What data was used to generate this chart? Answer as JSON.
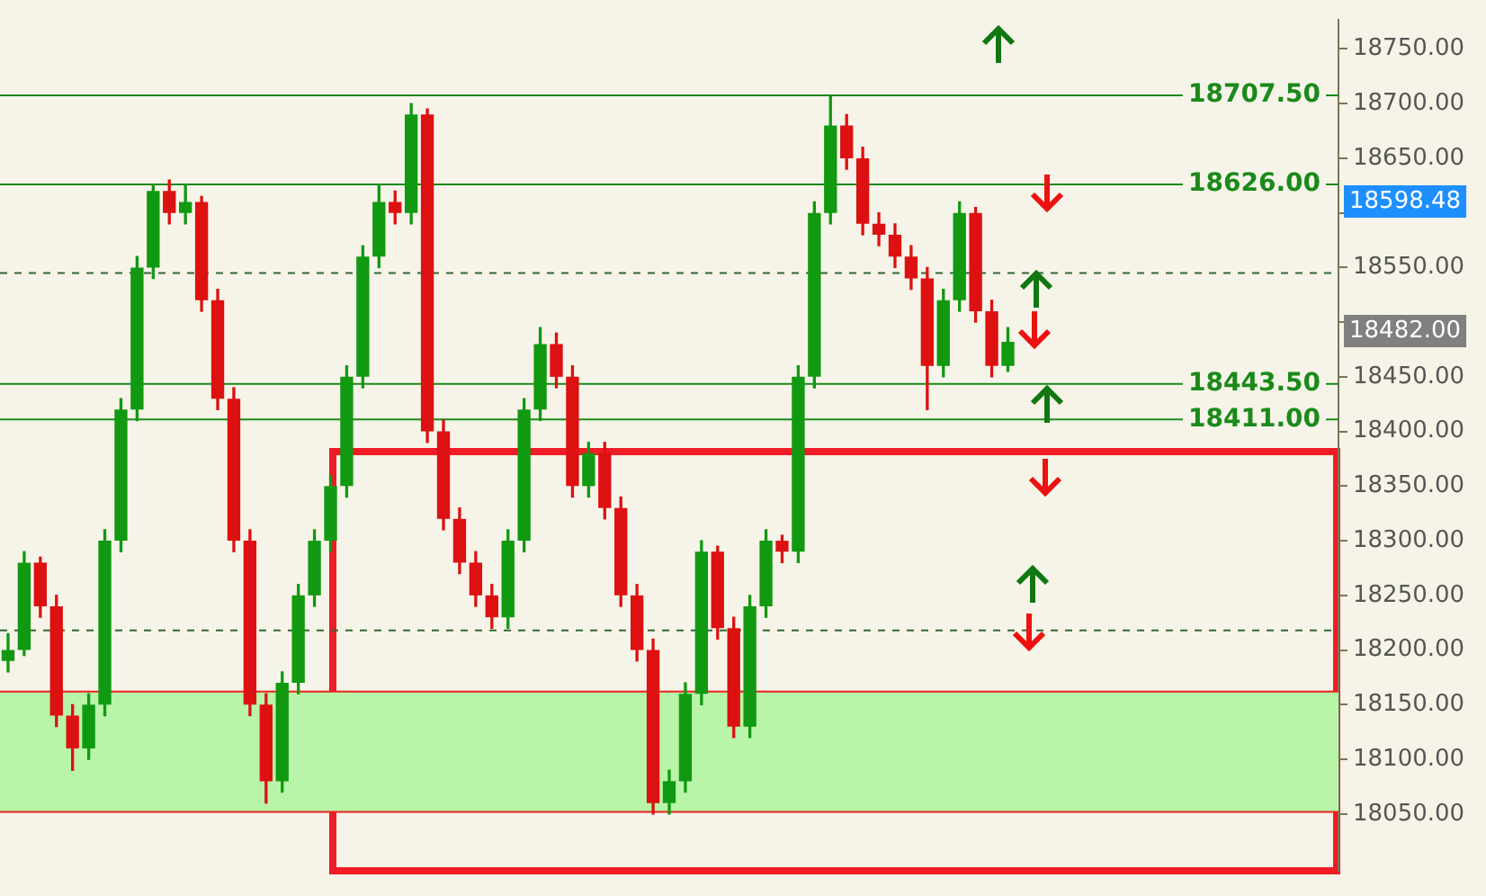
{
  "chart_data": {
    "type": "candlestick",
    "categories": [
      null,
      null,
      null,
      null,
      null,
      null,
      null,
      null,
      null,
      null,
      null,
      null,
      null,
      null,
      null,
      null,
      null,
      null,
      null,
      null,
      null,
      null,
      null,
      null,
      null,
      null,
      null,
      null,
      null,
      null,
      null,
      null,
      null,
      null,
      null,
      null,
      null,
      null,
      null,
      null,
      null,
      null,
      null,
      null,
      null,
      null,
      null,
      null,
      null,
      null,
      null,
      null,
      null,
      null,
      null,
      null,
      null,
      null,
      null,
      null,
      null,
      null,
      null,
      null,
      null,
      null,
      null,
      null,
      null,
      null,
      null,
      null,
      null,
      null,
      null,
      null,
      null,
      null,
      null,
      null,
      null,
      null,
      null
    ],
    "ohlc": [
      [
        18190,
        18215,
        18180,
        18200
      ],
      [
        18200,
        18290,
        18195,
        18280
      ],
      [
        18280,
        18285,
        18230,
        18240
      ],
      [
        18240,
        18250,
        18130,
        18140
      ],
      [
        18140,
        18150,
        18090,
        18110
      ],
      [
        18110,
        18160,
        18100,
        18150
      ],
      [
        18150,
        18310,
        18140,
        18300
      ],
      [
        18300,
        18430,
        18290,
        18420
      ],
      [
        18420,
        18560,
        18410,
        18550
      ],
      [
        18550,
        18625,
        18540,
        18620
      ],
      [
        18620,
        18630,
        18590,
        18600
      ],
      [
        18600,
        18625,
        18590,
        18610
      ],
      [
        18610,
        18615,
        18510,
        18520
      ],
      [
        18520,
        18530,
        18420,
        18430
      ],
      [
        18430,
        18440,
        18290,
        18300
      ],
      [
        18300,
        18310,
        18140,
        18150
      ],
      [
        18150,
        18160,
        18060,
        18080
      ],
      [
        18080,
        18180,
        18070,
        18170
      ],
      [
        18170,
        18260,
        18160,
        18250
      ],
      [
        18250,
        18310,
        18240,
        18300
      ],
      [
        18300,
        18360,
        18290,
        18350
      ],
      [
        18350,
        18460,
        18340,
        18450
      ],
      [
        18450,
        18570,
        18440,
        18560
      ],
      [
        18560,
        18625,
        18550,
        18610
      ],
      [
        18610,
        18620,
        18590,
        18600
      ],
      [
        18600,
        18700,
        18590,
        18690
      ],
      [
        18690,
        18695,
        18390,
        18400
      ],
      [
        18400,
        18410,
        18310,
        18320
      ],
      [
        18320,
        18330,
        18270,
        18280
      ],
      [
        18280,
        18290,
        18240,
        18250
      ],
      [
        18250,
        18260,
        18220,
        18230
      ],
      [
        18230,
        18310,
        18220,
        18300
      ],
      [
        18300,
        18430,
        18290,
        18420
      ],
      [
        18420,
        18495,
        18410,
        18480
      ],
      [
        18480,
        18490,
        18440,
        18450
      ],
      [
        18450,
        18460,
        18340,
        18350
      ],
      [
        18350,
        18390,
        18340,
        18380
      ],
      [
        18380,
        18390,
        18320,
        18330
      ],
      [
        18330,
        18340,
        18240,
        18250
      ],
      [
        18250,
        18260,
        18190,
        18200
      ],
      [
        18200,
        18210,
        18050,
        18060
      ],
      [
        18060,
        18090,
        18050,
        18080
      ],
      [
        18080,
        18170,
        18070,
        18160
      ],
      [
        18160,
        18300,
        18150,
        18290
      ],
      [
        18290,
        18295,
        18210,
        18220
      ],
      [
        18220,
        18230,
        18120,
        18130
      ],
      [
        18130,
        18250,
        18120,
        18240
      ],
      [
        18240,
        18310,
        18230,
        18300
      ],
      [
        18300,
        18305,
        18280,
        18290
      ],
      [
        18290,
        18460,
        18280,
        18450
      ],
      [
        18450,
        18610,
        18440,
        18600
      ],
      [
        18600,
        18707,
        18590,
        18680
      ],
      [
        18680,
        18690,
        18640,
        18650
      ],
      [
        18650,
        18660,
        18580,
        18590
      ],
      [
        18590,
        18600,
        18570,
        18580
      ],
      [
        18580,
        18590,
        18550,
        18560
      ],
      [
        18560,
        18570,
        18530,
        18540
      ],
      [
        18540,
        18550,
        18420,
        18460
      ],
      [
        18460,
        18530,
        18450,
        18520
      ],
      [
        18520,
        18610,
        18510,
        18600
      ],
      [
        18600,
        18605,
        18500,
        18510
      ],
      [
        18510,
        18520,
        18450,
        18460
      ],
      [
        18460,
        18495,
        18455,
        18482
      ],
      null,
      null,
      null,
      null,
      null,
      null,
      null,
      null,
      null,
      null,
      null,
      null,
      null,
      null,
      null,
      null,
      null,
      null,
      null,
      null
    ],
    "ylim": [
      17998,
      18777
    ],
    "yticks": [
      {
        "value": 18050,
        "label": "18050.00"
      },
      {
        "value": 18100,
        "label": "18100.00"
      },
      {
        "value": 18150,
        "label": "18150.00"
      },
      {
        "value": 18200,
        "label": "18200.00"
      },
      {
        "value": 18250,
        "label": "18250.00"
      },
      {
        "value": 18300,
        "label": "18300.00"
      },
      {
        "value": 18350,
        "label": "18350.00"
      },
      {
        "value": 18400,
        "label": "18400.00"
      },
      {
        "value": 18450,
        "label": "18450.00"
      },
      {
        "value": 18500,
        "label": null
      },
      {
        "value": 18550,
        "label": "18550.00"
      },
      {
        "value": 18600,
        "label": null
      },
      {
        "value": 18650,
        "label": "18650.00"
      },
      {
        "value": 18700,
        "label": "18700.00"
      },
      {
        "value": 18750,
        "label": "18750.00"
      }
    ],
    "ref_lines": [
      {
        "axis": "y",
        "value": 18707.5,
        "label": "18707.50",
        "color": "#1a8a1a"
      },
      {
        "axis": "y",
        "value": 18626,
        "label": "18626.00",
        "color": "#1a8a1a"
      },
      {
        "axis": "y",
        "value": 18443.5,
        "label": "18443.50",
        "color": "#1a8a1a"
      },
      {
        "axis": "y",
        "value": 18411,
        "label": "18411.00",
        "color": "#1a8a1a"
      },
      {
        "axis": "y",
        "value": 18545,
        "color": "#336633",
        "line_style": "dashed"
      },
      {
        "axis": "y",
        "value": 18218,
        "color": "#336633",
        "line_style": "dashed"
      },
      {
        "axis": "y",
        "value": 18162,
        "color": "#ee2222"
      },
      {
        "axis": "y",
        "value": 18052,
        "color": "#ee2222"
      }
    ],
    "bands": [
      {
        "axis": "y",
        "from": 18052,
        "to": 18162,
        "color": "#b8f5a8"
      }
    ],
    "annotations": [
      "18598.48",
      "18482.00"
    ],
    "grid": false,
    "legend": false
  }
}
